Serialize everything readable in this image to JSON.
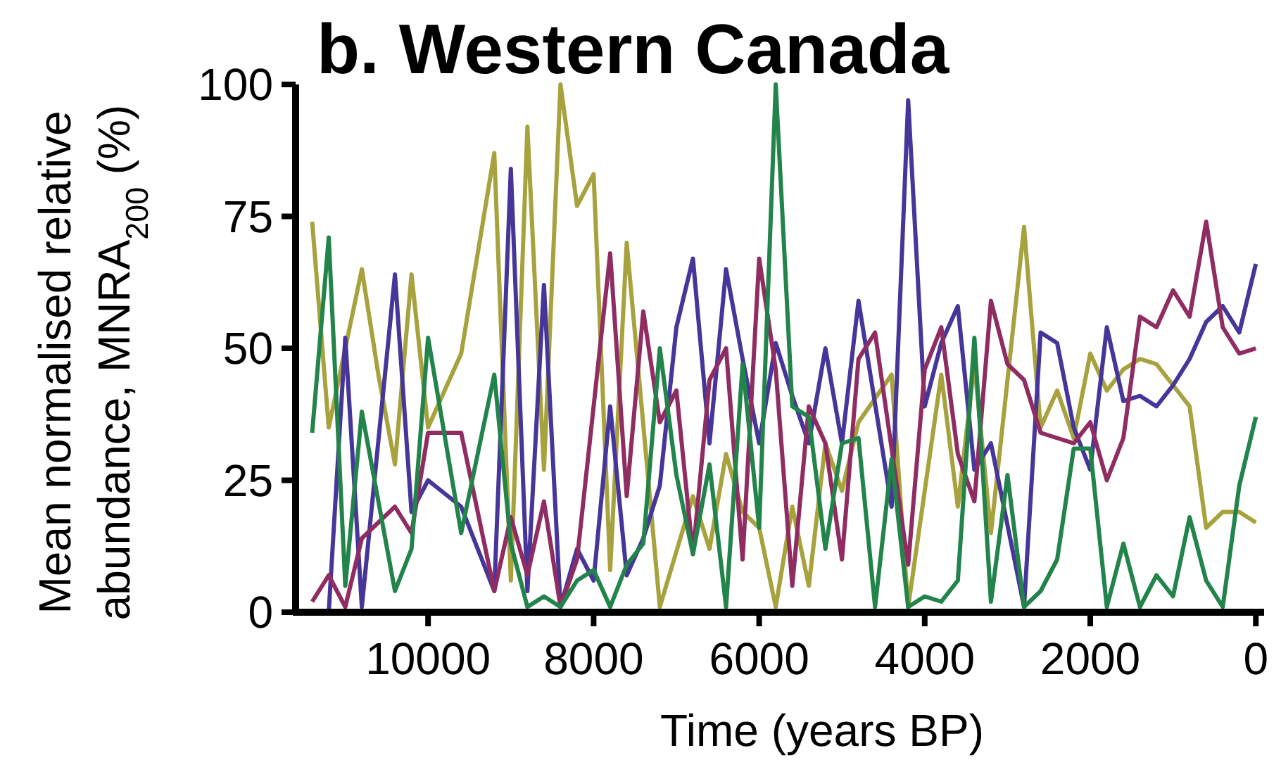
{
  "chart_data": {
    "type": "line",
    "title": "b. Western Canada",
    "xlabel": "Time (years BP)",
    "ylabel": "Mean normalised relative abundance, MNRA$_{200}$ (%)",
    "xlim": [
      11600,
      -100
    ],
    "xticks": [
      10000,
      8000,
      6000,
      4000,
      2000,
      0
    ],
    "ylim": [
      0,
      100
    ],
    "yticks": [
      0,
      25,
      50,
      75,
      100
    ],
    "series": [
      {
        "color": "#a8a23e",
        "x": [
          11400,
          11200,
          11000,
          10800,
          10600,
          10400,
          10200,
          10000,
          9800,
          9600,
          9400,
          9200,
          9000,
          8800,
          8600,
          8400,
          8200,
          8000,
          7800,
          7600,
          7200,
          6800,
          6600,
          6400,
          6200,
          6000,
          5800,
          5600,
          5400,
          5200,
          5000,
          4800,
          4400,
          4200,
          3800,
          3600,
          3400,
          3200,
          2800,
          2600,
          2400,
          2200,
          2000,
          1800,
          1600,
          1400,
          1200,
          1000,
          800,
          600,
          400,
          200,
          0
        ],
        "values": [
          74,
          35,
          50,
          65,
          45,
          28,
          64,
          35,
          42,
          49,
          68,
          87,
          6,
          92,
          27,
          100,
          77,
          83,
          8,
          70,
          1,
          22,
          12,
          30,
          19,
          16,
          1,
          20,
          5,
          32,
          23,
          36,
          45,
          1,
          45,
          20,
          47,
          15,
          73,
          35,
          42,
          33,
          49,
          42,
          46,
          48,
          47,
          43,
          39,
          16,
          19,
          19,
          17
        ]
      },
      {
        "color": "#46369a",
        "x": [
          11200,
          11000,
          10800,
          10400,
          10200,
          10000,
          9600,
          9200,
          9000,
          8800,
          8600,
          8400,
          8200,
          8000,
          7800,
          7600,
          7400,
          7200,
          7000,
          6800,
          6600,
          6400,
          6200,
          6000,
          5800,
          5600,
          5400,
          5200,
          5000,
          4800,
          4400,
          4200,
          4000,
          3800,
          3600,
          3400,
          3200,
          2800,
          2600,
          2400,
          2200,
          2000,
          1800,
          1600,
          1400,
          1200,
          1000,
          800,
          600,
          400,
          200,
          0
        ],
        "values": [
          0,
          52,
          1,
          64,
          19,
          25,
          20,
          4,
          84,
          4,
          62,
          1,
          12,
          6,
          39,
          7,
          14,
          24,
          54,
          67,
          32,
          65,
          48,
          32,
          51,
          41,
          32,
          50,
          32,
          59,
          20,
          97,
          39,
          51,
          58,
          27,
          32,
          1,
          53,
          51,
          35,
          27,
          54,
          40,
          41,
          39,
          43,
          48,
          55,
          58,
          53,
          66
        ]
      },
      {
        "color": "#8f2d62",
        "x": [
          11400,
          11200,
          11000,
          10800,
          10400,
          10200,
          10000,
          9600,
          9200,
          9000,
          8800,
          8600,
          8400,
          8200,
          7800,
          7600,
          7400,
          7200,
          7000,
          6800,
          6600,
          6400,
          6200,
          6000,
          5800,
          5600,
          5400,
          5200,
          5000,
          4800,
          4600,
          4200,
          4000,
          3800,
          3600,
          3400,
          3200,
          3000,
          2800,
          2600,
          2400,
          2200,
          2000,
          1800,
          1600,
          1400,
          1200,
          1000,
          800,
          600,
          400,
          200,
          0
        ],
        "values": [
          2,
          7,
          1,
          14,
          20,
          15,
          34,
          34,
          4,
          18,
          7,
          21,
          1,
          10,
          68,
          22,
          57,
          36,
          42,
          11,
          44,
          50,
          10,
          67,
          46,
          5,
          39,
          32,
          10,
          48,
          53,
          9,
          46,
          54,
          30,
          21,
          59,
          47,
          44,
          34,
          33,
          32,
          36,
          25,
          33,
          56,
          54,
          61,
          56,
          74,
          54,
          49,
          50
        ]
      },
      {
        "color": "#22844a",
        "x": [
          11400,
          11200,
          11000,
          10800,
          10400,
          10200,
          10000,
          9600,
          9200,
          9000,
          8800,
          8600,
          8400,
          8200,
          8000,
          7800,
          7600,
          7400,
          7200,
          7000,
          6800,
          6600,
          6400,
          6200,
          6000,
          5800,
          5600,
          5400,
          5200,
          5000,
          4800,
          4600,
          4400,
          4200,
          4000,
          3800,
          3600,
          3400,
          3200,
          3000,
          2800,
          2600,
          2400,
          2200,
          2000,
          1800,
          1600,
          1400,
          1200,
          1000,
          800,
          600,
          400,
          200,
          0
        ],
        "values": [
          34,
          71,
          5,
          38,
          4,
          12,
          52,
          15,
          45,
          13,
          1,
          3,
          1,
          6,
          8,
          1,
          9,
          13,
          50,
          26,
          11,
          28,
          1,
          47,
          16,
          100,
          39,
          37,
          12,
          32,
          33,
          1,
          29,
          1,
          3,
          2,
          6,
          52,
          2,
          26,
          1,
          4,
          10,
          31,
          31,
          1,
          13,
          1,
          7,
          3,
          18,
          6,
          1,
          24,
          37
        ]
      }
    ]
  }
}
